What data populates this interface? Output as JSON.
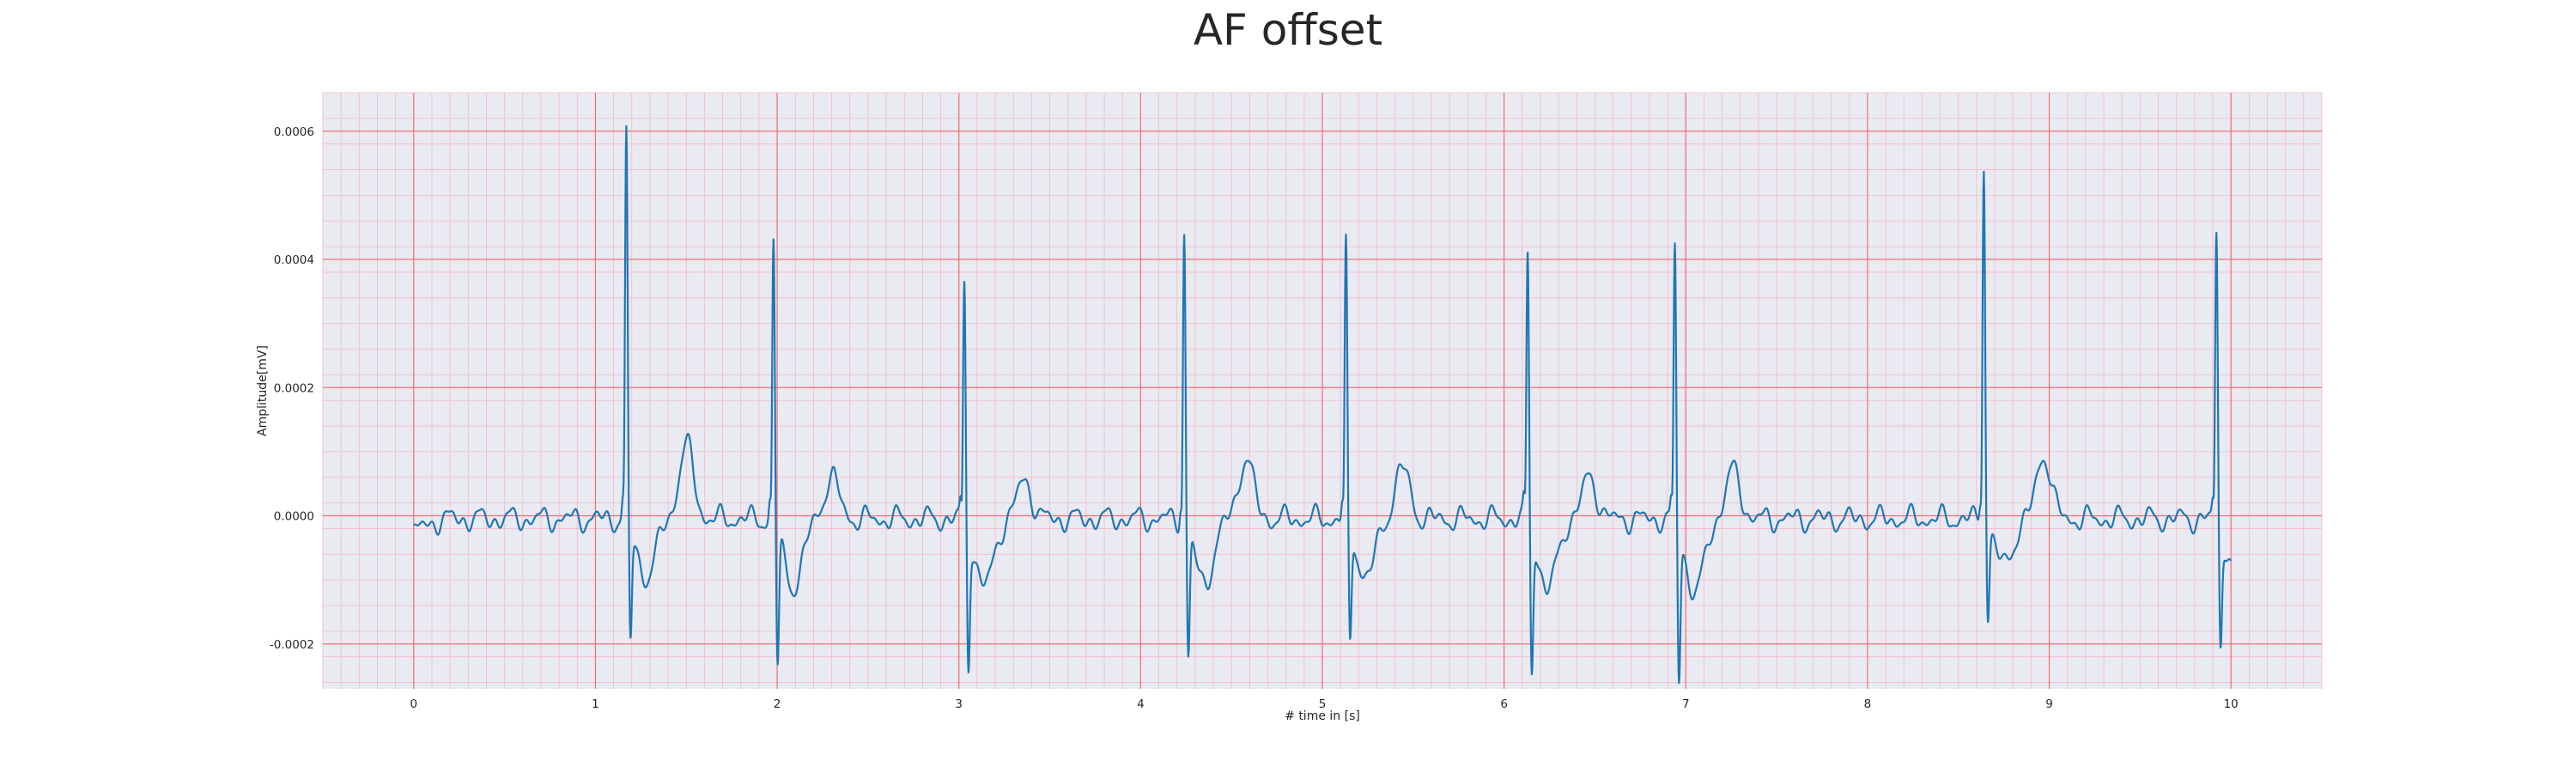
{
  "chart_data": {
    "type": "line",
    "title": "AF offset",
    "xlabel": "# time in [s]",
    "ylabel": "Amplitude[mV]",
    "xlim": [
      -0.5,
      10.5
    ],
    "ylim": [
      -0.00027,
      0.00066
    ],
    "xticks": [
      0,
      1,
      2,
      3,
      4,
      5,
      6,
      7,
      8,
      9,
      10
    ],
    "xtick_labels": [
      "0",
      "1",
      "2",
      "3",
      "4",
      "5",
      "6",
      "7",
      "8",
      "9",
      "10"
    ],
    "yticks": [
      -0.0002,
      0.0,
      0.0002,
      0.0004,
      0.0006
    ],
    "ytick_labels": [
      "-0.0002",
      "0.0000",
      "0.0002",
      "0.0004",
      "0.0006"
    ],
    "grid": "major and minor",
    "colors": {
      "line": "#1f77b4",
      "plot_background": "#eaeaf2",
      "major_grid": "#f07070",
      "minor_grid": "#f5b8c4"
    },
    "beats": [
      {
        "r_time": 1.17,
        "r_peak": 0.00062,
        "s_min": -0.00018,
        "t_time": 1.5,
        "t_peak": 0.000115
      },
      {
        "r_time": 1.98,
        "r_peak": 0.000455,
        "s_min": -0.00021,
        "t_time": 2.3,
        "t_peak": 6.5e-05
      },
      {
        "r_time": 3.03,
        "r_peak": 0.00039,
        "s_min": -0.00021,
        "t_time": 3.36,
        "t_peak": 6e-05
      },
      {
        "r_time": 4.24,
        "r_peak": 0.00047,
        "s_min": -0.0002,
        "t_time": 4.58,
        "t_peak": 9.5e-05
      },
      {
        "r_time": 5.13,
        "r_peak": 0.000445,
        "s_min": -0.00018,
        "t_time": 5.44,
        "t_peak": 8e-05
      },
      {
        "r_time": 6.13,
        "r_peak": 0.000435,
        "s_min": -0.00022,
        "t_time": 6.47,
        "t_peak": 6.5e-05
      },
      {
        "r_time": 6.94,
        "r_peak": 0.000445,
        "s_min": -0.00023,
        "t_time": 7.26,
        "t_peak": 7.5e-05
      },
      {
        "r_time": 8.64,
        "r_peak": 0.000575,
        "s_min": -0.00014,
        "t_time": 8.97,
        "t_peak": 0.0001
      },
      {
        "r_time": 9.92,
        "r_peak": 0.000465,
        "s_min": -0.00018,
        "t_time": null,
        "t_peak": null
      }
    ],
    "x_start": 0.0,
    "x_end": 10.0,
    "baseline": 0.0
  }
}
